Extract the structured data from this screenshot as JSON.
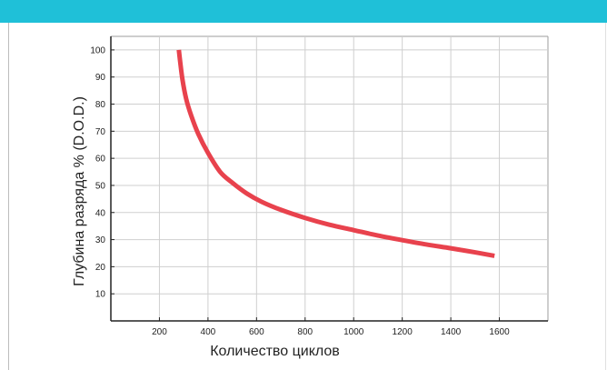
{
  "header": {
    "color": "#1fc0d8"
  },
  "chart_data": {
    "type": "line",
    "title": "",
    "xlabel": "Количество циклов",
    "ylabel": "Глубина разряда % (D.O.D.)",
    "xlim": [
      0,
      1800
    ],
    "ylim": [
      0,
      105
    ],
    "x_ticks": [
      200,
      400,
      600,
      800,
      1000,
      1200,
      1400,
      1600
    ],
    "x_tick_labels": [
      "200",
      "400",
      "600",
      "800",
      "1000",
      "1200",
      "1400",
      "1600"
    ],
    "y_ticks": [
      10,
      20,
      30,
      40,
      50,
      60,
      70,
      80,
      90,
      100
    ],
    "y_tick_labels": [
      "10",
      "20",
      "30",
      "40",
      "50",
      "60",
      "70",
      "80",
      "90",
      "100"
    ],
    "grid": true,
    "legend": "none",
    "series": [
      {
        "color": "#e8424d",
        "x": [
          280,
          285,
          295,
          310,
          330,
          360,
          400,
          450,
          500,
          560,
          620,
          700,
          800,
          900,
          1000,
          1100,
          1200,
          1300,
          1400,
          1500,
          1580
        ],
        "y": [
          100,
          96,
          89,
          82,
          76,
          69,
          62,
          55,
          51,
          47,
          44,
          41,
          38,
          35.5,
          33.5,
          31.5,
          29.8,
          28.2,
          26.8,
          25.3,
          24
        ]
      }
    ]
  }
}
